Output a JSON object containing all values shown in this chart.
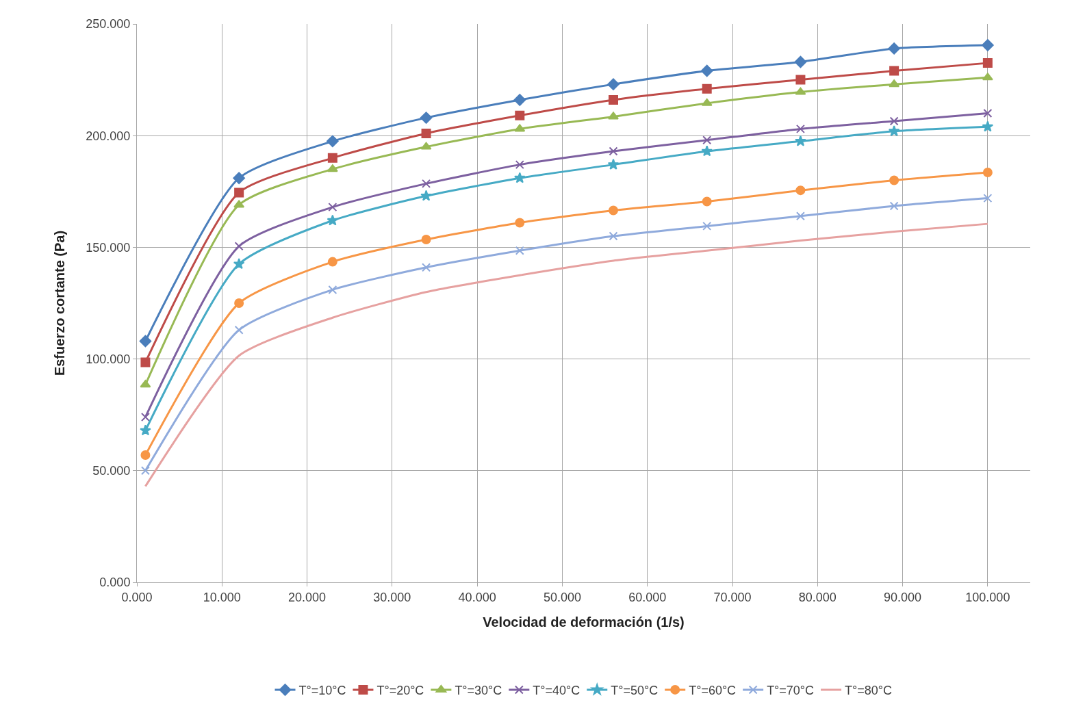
{
  "chart_data": {
    "type": "line",
    "xlabel": "Velocidad de deformación (1/s)",
    "ylabel": "Esfuerzo cortante (Pa)",
    "x": [
      1,
      12,
      23,
      34,
      45,
      56,
      67,
      78,
      89,
      100
    ],
    "xlim": [
      0,
      105
    ],
    "ylim": [
      0,
      250
    ],
    "xticks": [
      {
        "value": 0,
        "label": "0.000"
      },
      {
        "value": 10,
        "label": "10.000"
      },
      {
        "value": 20,
        "label": "20.000"
      },
      {
        "value": 30,
        "label": "30.000"
      },
      {
        "value": 40,
        "label": "40.000"
      },
      {
        "value": 50,
        "label": "50.000"
      },
      {
        "value": 60,
        "label": "60.000"
      },
      {
        "value": 70,
        "label": "70.000"
      },
      {
        "value": 80,
        "label": "80.000"
      },
      {
        "value": 90,
        "label": "90.000"
      },
      {
        "value": 100,
        "label": "100.000"
      }
    ],
    "yticks": [
      {
        "value": 0,
        "label": "0.000"
      },
      {
        "value": 50,
        "label": "50.000"
      },
      {
        "value": 100,
        "label": "100.000"
      },
      {
        "value": 150,
        "label": "150.000"
      },
      {
        "value": 200,
        "label": "200.000"
      },
      {
        "value": 250,
        "label": "250.000"
      }
    ],
    "grid": true,
    "legend": "bottom",
    "line_style": "solid",
    "series": [
      {
        "name": "T°=10°C",
        "color": "#4a7ebb",
        "marker": "diamond",
        "values": [
          108,
          181,
          197.5,
          208,
          216,
          223,
          229,
          233,
          239,
          240.5
        ]
      },
      {
        "name": "T°=20°C",
        "color": "#be4b48",
        "marker": "square",
        "values": [
          98.5,
          174.5,
          190,
          201,
          209,
          216,
          221,
          225,
          229,
          232.5
        ]
      },
      {
        "name": "T°=30°C",
        "color": "#98b954",
        "marker": "triangle",
        "values": [
          88.5,
          169,
          185,
          195,
          203,
          208.5,
          214.5,
          219.5,
          223,
          226
        ]
      },
      {
        "name": "T°=40°C",
        "color": "#7d60a0",
        "marker": "cross",
        "values": [
          74,
          150.5,
          168,
          178.5,
          187,
          193,
          198,
          203,
          206.5,
          210
        ]
      },
      {
        "name": "T°=50°C",
        "color": "#46aac5",
        "marker": "star",
        "values": [
          68,
          142.5,
          162,
          173,
          181,
          187,
          193,
          197.5,
          202,
          204
        ]
      },
      {
        "name": "T°=60°C",
        "color": "#f79646",
        "marker": "circle",
        "values": [
          57,
          125,
          143.5,
          153.5,
          161,
          166.5,
          170.5,
          175.5,
          180,
          183.5
        ]
      },
      {
        "name": "T°=70°C",
        "color": "#8faadc",
        "marker": "cross",
        "values": [
          50,
          113,
          131,
          141,
          148.5,
          155,
          159.5,
          164,
          168.5,
          172
        ]
      },
      {
        "name": "T°=80°C",
        "color": "#e6a1a0",
        "marker": "none",
        "values": [
          43,
          101.5,
          118.5,
          130,
          137.5,
          144,
          148.5,
          153,
          157,
          160.5
        ]
      }
    ]
  }
}
